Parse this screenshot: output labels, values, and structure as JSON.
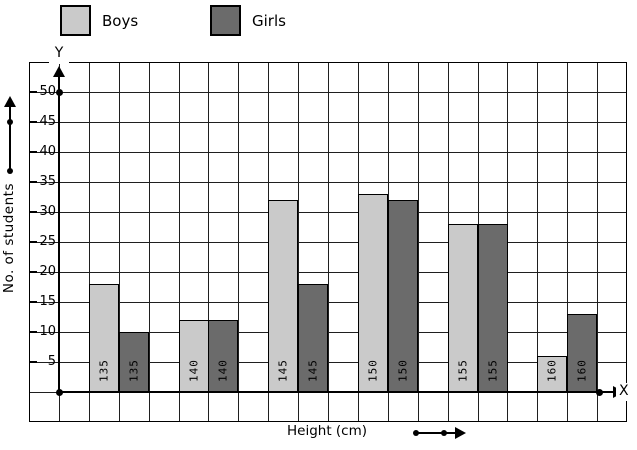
{
  "legend": [
    {
      "label": "Boys",
      "color": "#cacaca"
    },
    {
      "label": "Girls",
      "color": "#6b6b6b"
    }
  ],
  "axes": {
    "x_name": "X",
    "y_name": "Y"
  },
  "chart_data": {
    "type": "bar",
    "title": "",
    "categories": [
      "135",
      "140",
      "145",
      "150",
      "155",
      "160"
    ],
    "series": [
      {
        "name": "Boys",
        "color": "#cacaca",
        "values": [
          18,
          12,
          32,
          33,
          28,
          6
        ]
      },
      {
        "name": "Girls",
        "color": "#6b6b6b",
        "values": [
          10,
          12,
          18,
          32,
          28,
          13
        ]
      }
    ],
    "xlabel": "Height (cm)",
    "ylabel": "No. of students",
    "y_ticks": [
      5,
      10,
      15,
      20,
      25,
      30,
      35,
      40,
      45,
      50
    ],
    "ylim": [
      0,
      55
    ],
    "grid": true,
    "legend_position": "top",
    "bar_labels": "category-rotated-inside"
  }
}
